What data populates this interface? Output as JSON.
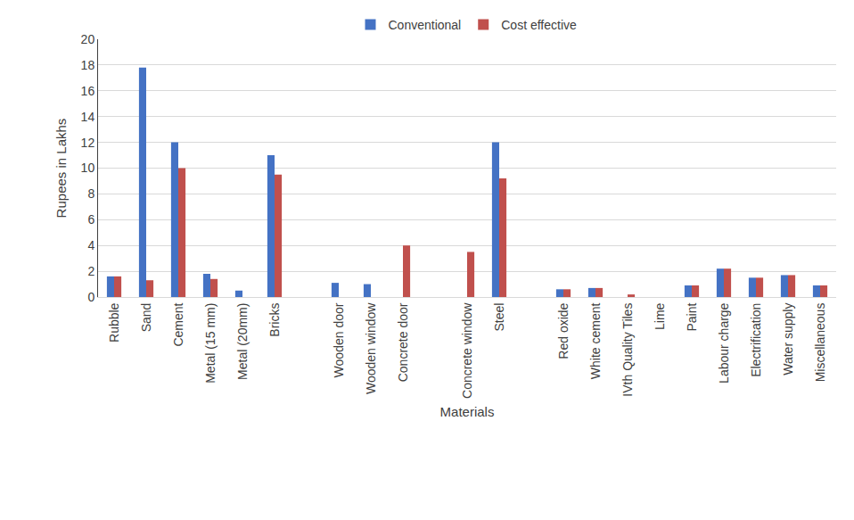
{
  "chart_data": {
    "type": "bar",
    "x_label": "Materials",
    "y_label": "Rupees in Lakhs",
    "categories": [
      "Rubble",
      "Sand",
      "Cement",
      "Metal (15 mm)",
      "Metal (20mm)",
      "Bricks",
      null,
      "Wooden door",
      "Wooden window",
      "Concrete door",
      null,
      "Concrete window",
      "Steel",
      null,
      "Red oxide",
      "White cement",
      "IVth Quality Tiles",
      "Lime",
      "Paint",
      "Labour charge",
      "Electrification",
      "Water supply",
      "Miscellaneous"
    ],
    "series": [
      {
        "name": "Conventional",
        "color": "#4472c4",
        "values": [
          1.6,
          17.8,
          12,
          1.8,
          0.5,
          11,
          null,
          1.1,
          1.0,
          0,
          null,
          0,
          12,
          null,
          0.6,
          0.7,
          0,
          0,
          0.9,
          2.2,
          1.5,
          1.7,
          0.9
        ]
      },
      {
        "name": "Cost effective",
        "color": "#c0504d",
        "values": [
          1.6,
          1.3,
          10,
          1.4,
          0,
          9.5,
          null,
          0,
          0,
          4.0,
          null,
          3.5,
          9.2,
          null,
          0.6,
          0.7,
          0.2,
          0,
          0.9,
          2.2,
          1.5,
          1.7,
          0.9
        ]
      }
    ],
    "ylim": [
      0,
      20
    ],
    "yticks": [
      0,
      2,
      4,
      6,
      8,
      10,
      12,
      14,
      16,
      18,
      20
    ],
    "grid": true,
    "legend": "top"
  }
}
